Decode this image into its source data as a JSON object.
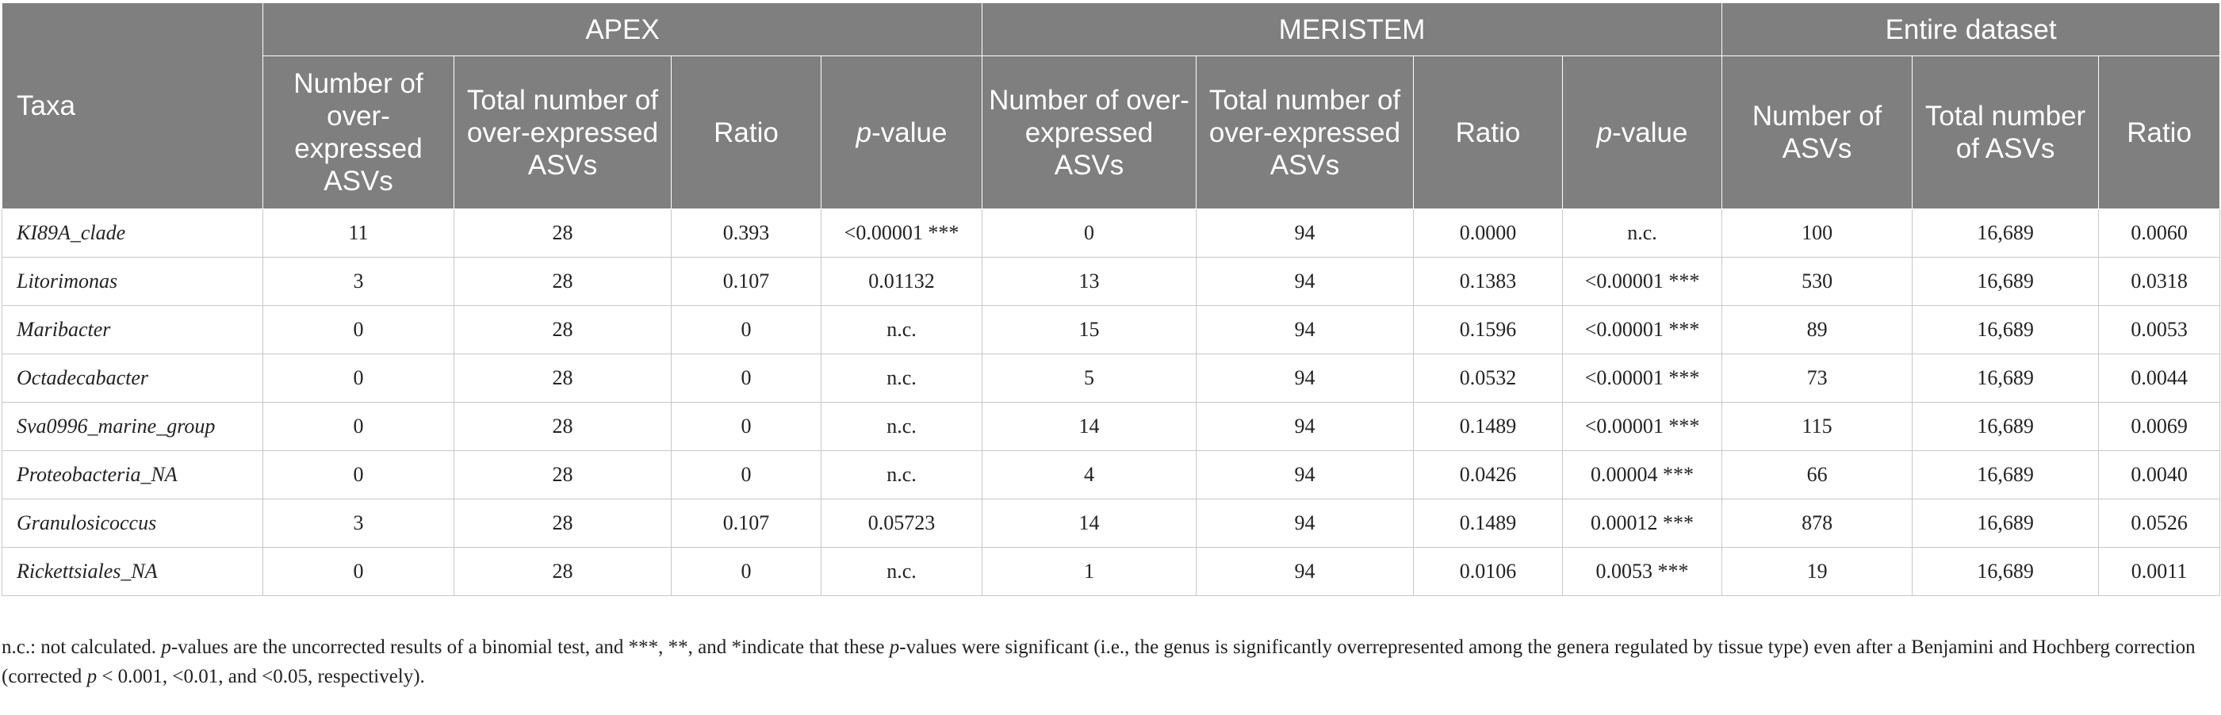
{
  "header": {
    "taxa": "Taxa",
    "groups": {
      "apex": "APEX",
      "meristem": "MERISTEM",
      "entire": "Entire dataset"
    },
    "apex_cols": {
      "num": "Number of over-expressed ASVs",
      "total": "Total number of over-expressed ASVs",
      "ratio": "Ratio",
      "pvalue_p": "p",
      "pvalue_rest": "-value"
    },
    "meristem_cols": {
      "num": "Number of over-expressed ASVs",
      "total": "Total number of over-expressed ASVs",
      "ratio": "Ratio",
      "pvalue_p": "p",
      "pvalue_rest": "-value"
    },
    "entire_cols": {
      "num": "Number of ASVs",
      "total": "Total number of ASVs",
      "ratio": "Ratio"
    }
  },
  "rows": [
    {
      "taxon": "KI89A_clade",
      "a_num": "11",
      "a_total": "28",
      "a_ratio": "0.393",
      "a_p": "<0.00001 ***",
      "m_num": "0",
      "m_total": "94",
      "m_ratio": "0.0000",
      "m_p": "n.c.",
      "e_num": "100",
      "e_total": "16,689",
      "e_ratio": "0.0060"
    },
    {
      "taxon": "Litorimonas",
      "a_num": "3",
      "a_total": "28",
      "a_ratio": "0.107",
      "a_p": "0.01132",
      "m_num": "13",
      "m_total": "94",
      "m_ratio": "0.1383",
      "m_p": "<0.00001 ***",
      "e_num": "530",
      "e_total": "16,689",
      "e_ratio": "0.0318"
    },
    {
      "taxon": "Maribacter",
      "a_num": "0",
      "a_total": "28",
      "a_ratio": "0",
      "a_p": "n.c.",
      "m_num": "15",
      "m_total": "94",
      "m_ratio": "0.1596",
      "m_p": "<0.00001 ***",
      "e_num": "89",
      "e_total": "16,689",
      "e_ratio": "0.0053"
    },
    {
      "taxon": "Octadecabacter",
      "a_num": "0",
      "a_total": "28",
      "a_ratio": "0",
      "a_p": "n.c.",
      "m_num": "5",
      "m_total": "94",
      "m_ratio": "0.0532",
      "m_p": "<0.00001 ***",
      "e_num": "73",
      "e_total": "16,689",
      "e_ratio": "0.0044"
    },
    {
      "taxon": "Sva0996_marine_group",
      "a_num": "0",
      "a_total": "28",
      "a_ratio": "0",
      "a_p": "n.c.",
      "m_num": "14",
      "m_total": "94",
      "m_ratio": "0.1489",
      "m_p": "<0.00001 ***",
      "e_num": "115",
      "e_total": "16,689",
      "e_ratio": "0.0069"
    },
    {
      "taxon": "Proteobacteria_NA",
      "a_num": "0",
      "a_total": "28",
      "a_ratio": "0",
      "a_p": "n.c.",
      "m_num": "4",
      "m_total": "94",
      "m_ratio": "0.0426",
      "m_p": "0.00004 ***",
      "e_num": "66",
      "e_total": "16,689",
      "e_ratio": "0.0040"
    },
    {
      "taxon": "Granulosicoccus",
      "a_num": "3",
      "a_total": "28",
      "a_ratio": "0.107",
      "a_p": "0.05723",
      "m_num": "14",
      "m_total": "94",
      "m_ratio": "0.1489",
      "m_p": "0.00012 ***",
      "e_num": "878",
      "e_total": "16,689",
      "e_ratio": "0.0526"
    },
    {
      "taxon": "Rickettsiales_NA",
      "a_num": "0",
      "a_total": "28",
      "a_ratio": "0",
      "a_p": "n.c.",
      "m_num": "1",
      "m_total": "94",
      "m_ratio": "0.0106",
      "m_p": "0.0053 ***",
      "e_num": "19",
      "e_total": "16,689",
      "e_ratio": "0.0011"
    }
  ],
  "footnote": {
    "part1": "n.c.: not calculated. ",
    "p1": "p",
    "part2": "-values are the uncorrected results of a binomial test, and ***, **, and *indicate that these ",
    "p2": "p",
    "part3": "-values were significant (i.e., the genus is significantly overrepresented among the genera regulated by tissue type) even after a Benjamini and Hochberg correction (corrected ",
    "p3": "p",
    "part4": " < 0.001, <0.01, and <0.05, respectively)."
  }
}
